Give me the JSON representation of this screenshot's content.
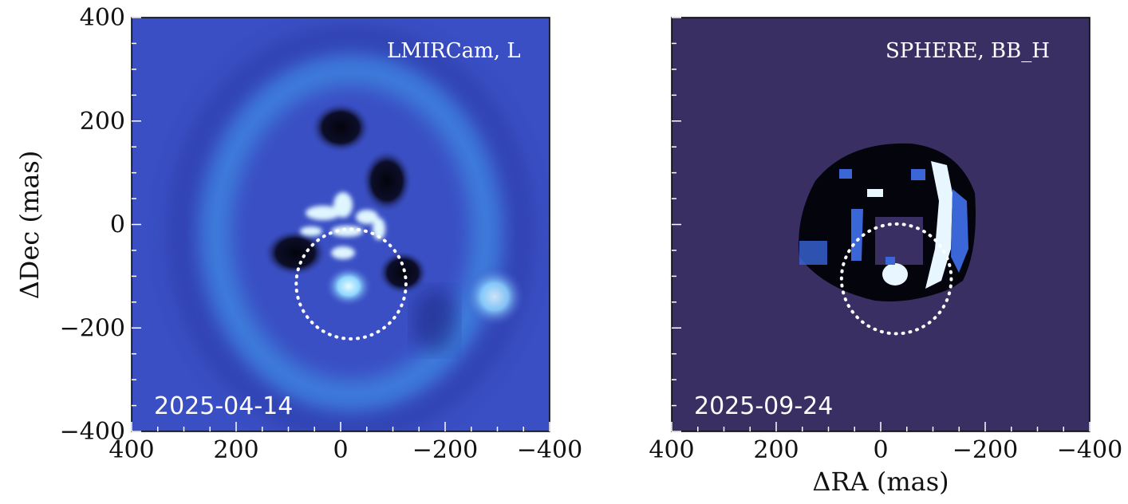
{
  "chart_data": [
    {
      "type": "heatmap",
      "instrument_label": "LMIRCam, L",
      "date_label": "2025-04-14",
      "xlabel": "",
      "ylabel": "ΔDec (mas)",
      "xlim": [
        400,
        -400
      ],
      "ylim": [
        -400,
        400
      ],
      "x_ticks": [
        400,
        200,
        0,
        -200,
        -400
      ],
      "y_ticks": [
        400,
        200,
        0,
        -200,
        -400
      ],
      "x_tick_labels": [
        "400",
        "200",
        "0",
        "−200",
        "−400"
      ],
      "y_tick_labels": [
        "400",
        "200",
        "0",
        "−200",
        "−400"
      ],
      "colors": {
        "background": "#3a4fc4",
        "bright": "#9fe2ff",
        "dark": "#05050f",
        "glow": "#3f8fe4"
      },
      "dotted_circle": {
        "cx": -20,
        "cy": -115,
        "r": 105
      },
      "companion_blob": {
        "x": -285,
        "y": -140
      }
    },
    {
      "type": "heatmap",
      "instrument_label": "SPHERE,  BB_H",
      "date_label": "2025-09-24",
      "xlabel": "ΔRA (mas)",
      "ylabel": "",
      "xlim": [
        400,
        -400
      ],
      "ylim": [
        -400,
        400
      ],
      "x_ticks": [
        400,
        200,
        0,
        -200,
        -400
      ],
      "x_tick_labels": [
        "400",
        "200",
        "0",
        "−200",
        "−400"
      ],
      "colors": {
        "background": "#3a2f62",
        "bright": "#e8f6ff",
        "dark": "#04040c",
        "mid": "#3a66d8"
      },
      "dotted_circle": {
        "cx": -30,
        "cy": -105,
        "r": 105
      }
    }
  ]
}
